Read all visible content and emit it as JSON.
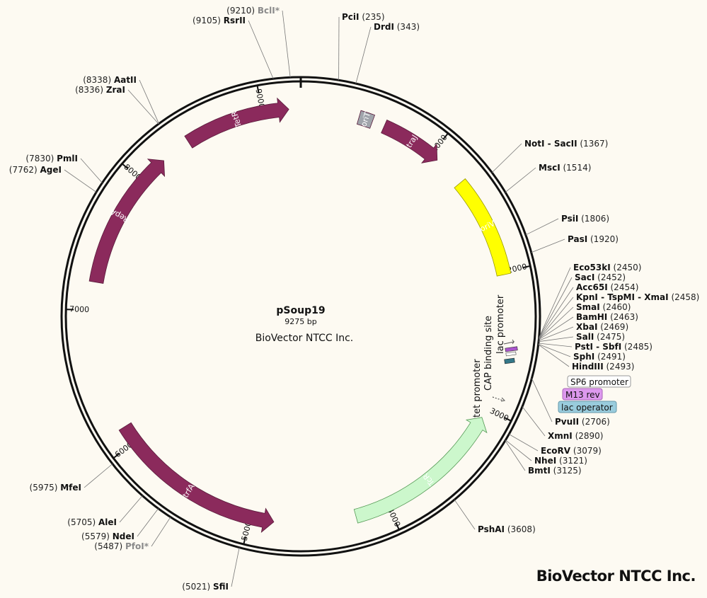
{
  "plasmid": {
    "name": "pSoup19",
    "length_label": "9275 bp",
    "company": "BioVector NTCC Inc.",
    "total_bp": 9275
  },
  "watermark": "BioVector NTCC Inc.",
  "ticks": [
    {
      "bp": 1000,
      "label": "1000"
    },
    {
      "bp": 2000,
      "label": "2000"
    },
    {
      "bp": 3000,
      "label": "3000"
    },
    {
      "bp": 4000,
      "label": "4000"
    },
    {
      "bp": 5000,
      "label": "5000"
    },
    {
      "bp": 6000,
      "label": "6000"
    },
    {
      "bp": 7000,
      "label": "7000"
    },
    {
      "bp": 8000,
      "label": "8000"
    },
    {
      "bp": 9000,
      "label": "9000"
    }
  ],
  "features": [
    {
      "name": "TetR",
      "start": 8430,
      "end": 9190,
      "dir": 1,
      "color": "#8b2a5c",
      "label_color": "#ffffff"
    },
    {
      "name": "traJ",
      "start": 610,
      "end": 1060,
      "dir": 1,
      "color": "#8b2a5c",
      "label_color": "#ffffff"
    },
    {
      "name": "oriT",
      "start": 420,
      "end": 520,
      "dir": 0,
      "color": "#a0a4ab",
      "label_color": "#111111"
    },
    {
      "name": "oriV",
      "start": 1290,
      "end": 2020,
      "dir": 0,
      "color": "#ffff00",
      "label_color": "#555555"
    },
    {
      "name": "TcR",
      "start": 3070,
      "end": 4240,
      "dir": -1,
      "color": "#ccf7cc",
      "label_color": "#555555"
    },
    {
      "name": "trfA",
      "start": 4830,
      "end": 6130,
      "dir": -1,
      "color": "#8b2a5c",
      "label_color": "#ffffff"
    },
    {
      "name": "RepA",
      "start": 7200,
      "end": 8210,
      "dir": 1,
      "color": "#8b2a5c",
      "label_color": "#ffffff"
    }
  ],
  "sites": [
    {
      "name": "RsrII",
      "pos": "9105",
      "style": "normal"
    },
    {
      "name": "BclI*",
      "pos": "9210",
      "style": "grey"
    },
    {
      "name": "PciI",
      "pos": "235",
      "style": "normal"
    },
    {
      "name": "DrdI",
      "pos": "343",
      "style": "normal"
    },
    {
      "name": "AatII",
      "pos": "8338",
      "style": "normal"
    },
    {
      "name": "ZraI",
      "pos": "8336",
      "style": "normal"
    },
    {
      "name": "PmlI",
      "pos": "7830",
      "style": "normal"
    },
    {
      "name": "AgeI",
      "pos": "7762",
      "style": "normal"
    },
    {
      "name": "NotI - SacII",
      "pos": "1367",
      "style": "normal"
    },
    {
      "name": "MscI",
      "pos": "1514",
      "style": "normal"
    },
    {
      "name": "PsiI",
      "pos": "1806",
      "style": "normal"
    },
    {
      "name": "PasI",
      "pos": "1920",
      "style": "normal"
    },
    {
      "name": "Eco53kI",
      "pos": "2450",
      "style": "normal"
    },
    {
      "name": "SacI",
      "pos": "2452",
      "style": "normal"
    },
    {
      "name": "Acc65I",
      "pos": "2454",
      "style": "normal"
    },
    {
      "name": "KpnI - TspMI - XmaI",
      "pos": "2458",
      "style": "normal"
    },
    {
      "name": "SmaI",
      "pos": "2460",
      "style": "normal"
    },
    {
      "name": "BamHI",
      "pos": "2463",
      "style": "normal"
    },
    {
      "name": "XbaI",
      "pos": "2469",
      "style": "normal"
    },
    {
      "name": "SalI",
      "pos": "2475",
      "style": "normal"
    },
    {
      "name": "PstI - SbfI",
      "pos": "2485",
      "style": "normal"
    },
    {
      "name": "SphI",
      "pos": "2491",
      "style": "normal"
    },
    {
      "name": "HindIII",
      "pos": "2493",
      "style": "normal"
    },
    {
      "name": "PvuII",
      "pos": "2706",
      "style": "normal"
    },
    {
      "name": "XmnI",
      "pos": "2890",
      "style": "normal"
    },
    {
      "name": "EcoRV",
      "pos": "3079",
      "style": "normal"
    },
    {
      "name": "NheI",
      "pos": "3121",
      "style": "normal"
    },
    {
      "name": "BmtI",
      "pos": "3125",
      "style": "normal"
    },
    {
      "name": "PshAI",
      "pos": "3608",
      "style": "normal"
    },
    {
      "name": "SfiI",
      "pos": "5021",
      "style": "normal"
    },
    {
      "name": "PfoI*",
      "pos": "5487",
      "style": "grey"
    },
    {
      "name": "NdeI",
      "pos": "5579",
      "style": "normal"
    },
    {
      "name": "AleI",
      "pos": "5705",
      "style": "normal"
    },
    {
      "name": "MfeI",
      "pos": "5975",
      "style": "normal"
    }
  ],
  "primer_tags": [
    {
      "name": "SP6 promoter",
      "bg": "#ffffff",
      "border": "#999999",
      "color": "#333333"
    },
    {
      "name": "M13 rev",
      "bg": "#dd99ee",
      "border": "#aa66bb",
      "color": "#333333"
    },
    {
      "name": "lac operator",
      "bg": "#99ccdd",
      "border": "#6699aa",
      "color": "#333333"
    }
  ],
  "small_feature_labels": {
    "lac_promoter": "lac promoter",
    "cap_site": "CAP binding site",
    "tet_promoter": "tet promoter"
  }
}
